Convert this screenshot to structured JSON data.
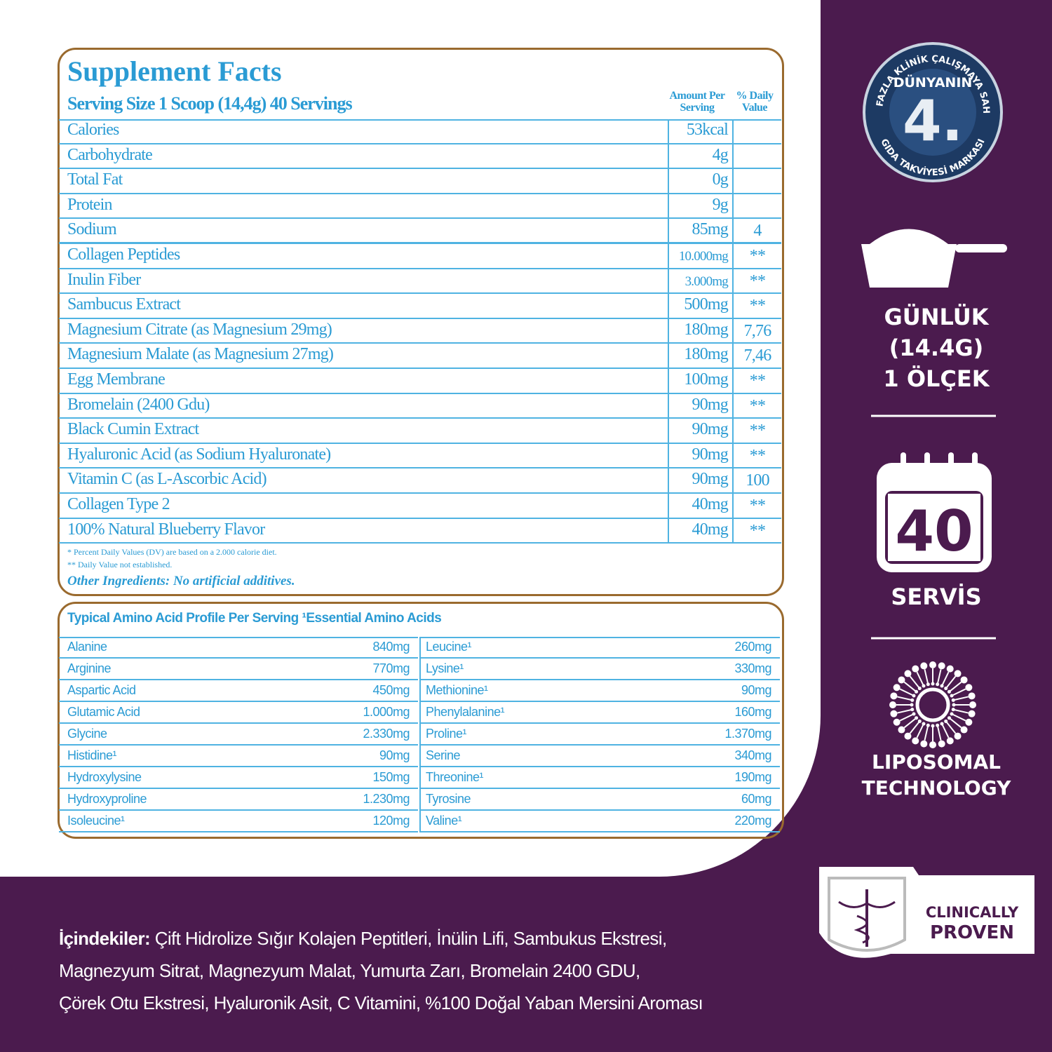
{
  "facts": {
    "title": "Supplement Facts",
    "serving": "Serving Size 1 Scoop (14,4g) 40 Servings",
    "amount_header": "Amount Per Serving",
    "dv_header": "% Daily Value",
    "rows": [
      {
        "name": "Calories",
        "amount": "53kcal"
      },
      {
        "name": "Carbohydrate",
        "amount": "4g"
      },
      {
        "name": "Total Fat",
        "amount": "0g"
      },
      {
        "name": "Protein",
        "amount": "9g"
      },
      {
        "name": "Sodium",
        "amount": "85mg",
        "dv": "4"
      },
      {
        "name": "Collagen Peptides",
        "amount": "10.000mg",
        "dv": "**"
      },
      {
        "name": "Inulin Fiber",
        "amount": "3.000mg",
        "dv": "**"
      },
      {
        "name": "Sambucus Extract",
        "amount": "500mg",
        "dv": "**"
      },
      {
        "name": "Magnesium Citrate (as Magnesium 29mg)",
        "amount": "180mg",
        "dv": "7,76"
      },
      {
        "name": "Magnesium Malate (as Magnesium 27mg)",
        "amount": "180mg",
        "dv": "7,46"
      },
      {
        "name": "Egg Membrane",
        "amount": "100mg",
        "dv": "**"
      },
      {
        "name": "Bromelain (2400 Gdu)",
        "amount": "90mg",
        "dv": "**"
      },
      {
        "name": "Black Cumin Extract",
        "amount": "90mg",
        "dv": "**"
      },
      {
        "name": "Hyaluronic Acid (as Sodium Hyaluronate)",
        "amount": "90mg",
        "dv": "**"
      },
      {
        "name": "Vitamin C (as L-Ascorbic Acid)",
        "amount": "90mg",
        "dv": "100"
      },
      {
        "name": "Collagen Type 2",
        "amount": "40mg",
        "dv": "**"
      },
      {
        "name": "100% Natural Blueberry Flavor",
        "amount": "40mg",
        "dv": "**"
      }
    ],
    "footnotes": [
      "* Percent Daily Values (DV) are based on a 2.000 calorie diet.",
      "** Daily Value not established."
    ],
    "other": "Other Ingredients: No artificial additives."
  },
  "amino": {
    "title": "Typical Amino Acid Profile Per Serving ¹Essential Amino Acids",
    "left": [
      {
        "name": "Alanine",
        "amount": "840mg"
      },
      {
        "name": "Arginine",
        "amount": "770mg"
      },
      {
        "name": "Aspartic Acid",
        "amount": "450mg"
      },
      {
        "name": "Glutamic Acid",
        "amount": "1.000mg"
      },
      {
        "name": "Glycine",
        "amount": "2.330mg"
      },
      {
        "name": "Histidine¹",
        "amount": "90mg"
      },
      {
        "name": "Hydroxylysine",
        "amount": "150mg"
      },
      {
        "name": "Hydroxyproline",
        "amount": "1.230mg"
      },
      {
        "name": "Isoleucine¹",
        "amount": "120mg"
      }
    ],
    "right": [
      {
        "name": "Leucine¹",
        "amount": "260mg"
      },
      {
        "name": "Lysine¹",
        "amount": "330mg"
      },
      {
        "name": "Methionine¹",
        "amount": "90mg"
      },
      {
        "name": "Phenylalanine¹",
        "amount": "160mg"
      },
      {
        "name": "Proline¹",
        "amount": "1.370mg"
      },
      {
        "name": "Serine",
        "amount": "340mg"
      },
      {
        "name": "Threonine¹",
        "amount": "190mg"
      },
      {
        "name": "Tyrosine",
        "amount": "60mg"
      },
      {
        "name": "Valine¹",
        "amount": "220mg"
      }
    ]
  },
  "badge": {
    "arc_top": "EN FAZLA KLİNİK ÇALIŞMAYA SAHİP",
    "line": "DÜNYANIN",
    "big": "4.",
    "arc_bottom": "GIDA TAKVİYESİ MARKASI"
  },
  "serving": {
    "lines": [
      "GÜNLÜK",
      "(14.4G)",
      "1 ÖLÇEK"
    ]
  },
  "calendar": {
    "number": "40",
    "label": "SERVİS"
  },
  "liposomal": {
    "lines": [
      "LIPOSOMAL",
      "TECHNOLOGY"
    ]
  },
  "clinical": {
    "lines": [
      "CLINICALLY",
      "PROVEN"
    ]
  },
  "ingredients": {
    "label": "İçindekiler:",
    "lines": [
      "Çift Hidrolize Sığır Kolajen Peptitleri,  İnülin Lifi, Sambukus Ekstresi,",
      "Magnezyum Sitrat, Magnezyum Malat, Yumurta Zarı, Bromelain 2400 GDU,",
      "Çörek Otu Ekstresi, Hyaluronik Asit, C Vitamini, %100 Doğal Yaban Mersini Aroması"
    ]
  }
}
